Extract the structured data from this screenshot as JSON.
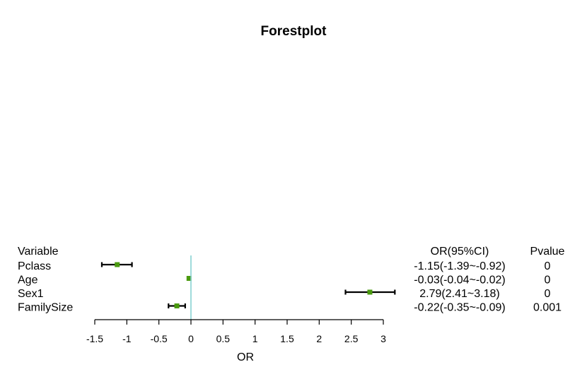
{
  "chart_data": {
    "type": "forest",
    "title": "Forestplot",
    "xlabel": "OR",
    "reference_line": 0,
    "xlim": [
      -1.5,
      3
    ],
    "ticks": [
      "-1.5",
      "-1",
      "-0.5",
      "0",
      "0.5",
      "1",
      "1.5",
      "2",
      "2.5",
      "3"
    ],
    "headers": {
      "variable": "Variable",
      "or_ci": "OR(95%CI)",
      "pvalue": "Pvalue"
    },
    "rows": [
      {
        "variable": "Pclass",
        "or": -1.15,
        "lower": -1.39,
        "upper": -0.92,
        "or_ci": "-1.15(-1.39~-0.92)",
        "pvalue": "0"
      },
      {
        "variable": "Age",
        "or": -0.03,
        "lower": -0.04,
        "upper": -0.02,
        "or_ci": "-0.03(-0.04~-0.02)",
        "pvalue": "0"
      },
      {
        "variable": "Sex1",
        "or": 2.79,
        "lower": 2.41,
        "upper": 3.18,
        "or_ci": "2.79(2.41~3.18)",
        "pvalue": "0"
      },
      {
        "variable": "FamilySize",
        "or": -0.22,
        "lower": -0.35,
        "upper": -0.09,
        "or_ci": "-0.22(-0.35~-0.09)",
        "pvalue": "0.001"
      }
    ],
    "colors": {
      "point": "#4a9a0f",
      "ci_line": "#000000",
      "reference_line": "#7fcfcf",
      "axis": "#000000"
    }
  }
}
